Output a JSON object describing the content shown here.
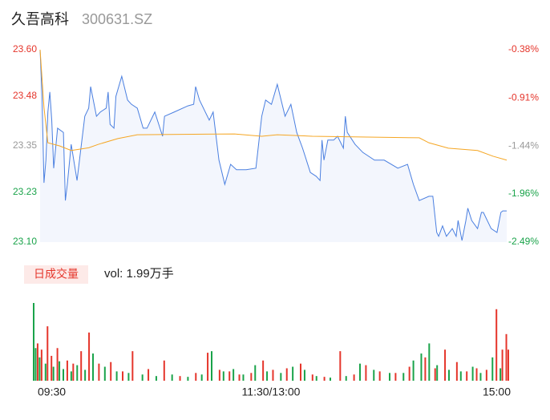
{
  "header": {
    "name": "久吾高科",
    "code": "300631.SZ"
  },
  "chart_data": [
    {
      "type": "line",
      "xlim": [
        0,
        240
      ],
      "ylim": [
        23.1,
        23.6
      ],
      "y2lim": [
        -2.49,
        -0.38
      ],
      "yticks": [
        {
          "value": 23.6,
          "label": "23.60"
        },
        {
          "value": 23.48,
          "label": "23.48"
        },
        {
          "value": 23.35,
          "label": "23.35"
        },
        {
          "value": 23.23,
          "label": "23.23"
        },
        {
          "value": 23.1,
          "label": "23.10"
        }
      ],
      "y2ticks": [
        {
          "value": -0.38,
          "label": "-0.38%"
        },
        {
          "value": -0.91,
          "label": "-0.91%"
        },
        {
          "value": -1.44,
          "label": "-1.44%"
        },
        {
          "value": -1.96,
          "label": "-1.96%"
        },
        {
          "value": -2.49,
          "label": "-2.49%"
        }
      ],
      "ytick_colors": [
        "#e5352b",
        "#e5352b",
        "#999999",
        "#1aa34a",
        "#1aa34a"
      ],
      "series": [
        {
          "color": "#4a7fe0",
          "x": [
            0,
            1,
            2,
            3,
            4,
            5,
            6,
            7,
            9,
            12,
            13,
            14,
            16,
            19,
            21,
            23,
            25,
            26,
            29,
            31,
            34,
            35,
            36,
            38,
            39,
            42,
            45,
            47,
            50,
            53,
            55,
            59,
            63,
            64,
            69,
            76,
            79,
            80,
            82,
            87,
            89,
            92,
            95,
            98,
            101,
            106,
            111,
            114,
            116,
            119,
            122,
            126,
            129,
            132,
            135,
            139,
            142,
            144,
            145,
            146,
            148,
            151,
            153,
            156,
            157,
            158,
            162,
            166,
            172,
            177,
            184,
            189,
            192,
            195,
            200,
            202,
            204,
            205,
            207,
            209,
            212,
            214,
            215,
            217,
            219,
            220,
            222,
            225,
            227,
            228,
            232,
            235,
            237,
            238,
            240
          ],
          "values": [
            23.6,
            23.479,
            23.254,
            23.313,
            23.438,
            23.49,
            23.417,
            23.292,
            23.396,
            23.385,
            23.208,
            23.25,
            23.354,
            23.26,
            23.344,
            23.427,
            23.448,
            23.504,
            23.427,
            23.438,
            23.448,
            23.49,
            23.406,
            23.396,
            23.479,
            23.531,
            23.469,
            23.458,
            23.448,
            23.396,
            23.396,
            23.438,
            23.375,
            23.427,
            23.438,
            23.454,
            23.458,
            23.504,
            23.469,
            23.417,
            23.438,
            23.313,
            23.25,
            23.302,
            23.288,
            23.288,
            23.292,
            23.427,
            23.469,
            23.458,
            23.51,
            23.427,
            23.458,
            23.385,
            23.344,
            23.281,
            23.271,
            23.26,
            23.365,
            23.313,
            23.365,
            23.365,
            23.375,
            23.344,
            23.427,
            23.385,
            23.354,
            23.333,
            23.313,
            23.313,
            23.292,
            23.302,
            23.25,
            23.208,
            23.219,
            23.219,
            23.125,
            23.115,
            23.142,
            23.115,
            23.135,
            23.115,
            23.156,
            23.104,
            23.156,
            23.188,
            23.156,
            23.135,
            23.177,
            23.177,
            23.135,
            23.125,
            23.177,
            23.181,
            23.181
          ]
        },
        {
          "color": "#f5a623",
          "x": [
            0,
            2,
            4,
            10,
            16,
            25,
            30,
            40,
            50,
            100,
            114,
            122,
            140,
            195,
            200,
            210,
            225,
            233,
            240
          ],
          "values": [
            23.6,
            23.45,
            23.358,
            23.35,
            23.338,
            23.345,
            23.354,
            23.369,
            23.379,
            23.381,
            23.375,
            23.379,
            23.375,
            23.371,
            23.358,
            23.344,
            23.338,
            23.323,
            23.313
          ]
        }
      ]
    },
    {
      "type": "bar",
      "title": "日成交量",
      "subtitle": "vol: 1.99万手",
      "xlim": [
        0,
        240
      ],
      "ylim": [
        0,
        100
      ],
      "xticks": [
        {
          "value": 0,
          "label": "09:30"
        },
        {
          "value": 120,
          "label": "11:30/13:00"
        },
        {
          "value": 240,
          "label": "15:00"
        }
      ],
      "series": [
        {
          "color": "#1aa34a",
          "x": [
            0,
            1,
            3,
            6,
            10,
            13,
            15,
            19,
            22,
            26,
            30,
            36,
            42,
            48,
            55,
            62,
            70,
            78,
            85,
            90,
            96,
            101,
            106,
            112,
            118,
            125,
            131,
            137,
            143,
            150,
            158,
            165,
            172,
            180,
            187,
            192,
            196,
            200,
            204,
            210,
            216,
            222,
            226,
            232,
            236
          ],
          "values": [
            100,
            42,
            30,
            22,
            18,
            25,
            15,
            12,
            20,
            14,
            35,
            18,
            12,
            10,
            8,
            6,
            8,
            5,
            8,
            38,
            12,
            15,
            8,
            20,
            12,
            10,
            18,
            14,
            6,
            4,
            6,
            22,
            14,
            10,
            10,
            26,
            35,
            48,
            20,
            14,
            12,
            18,
            10,
            30,
            16
          ]
        },
        {
          "color": "#e5352b",
          "x": [
            2,
            4,
            7,
            9,
            12,
            17,
            20,
            24,
            28,
            33,
            39,
            45,
            50,
            58,
            66,
            74,
            82,
            88,
            94,
            99,
            104,
            110,
            116,
            121,
            128,
            135,
            141,
            147,
            155,
            162,
            168,
            175,
            183,
            190,
            198,
            203,
            208,
            214,
            219,
            224,
            229,
            234,
            237,
            239,
            240
          ],
          "values": [
            48,
            40,
            70,
            32,
            42,
            26,
            22,
            38,
            62,
            22,
            24,
            12,
            38,
            15,
            26,
            6,
            10,
            36,
            14,
            12,
            8,
            10,
            26,
            14,
            16,
            22,
            8,
            5,
            38,
            8,
            20,
            12,
            10,
            18,
            30,
            16,
            40,
            24,
            12,
            16,
            14,
            92,
            40,
            60,
            40
          ]
        }
      ]
    }
  ]
}
